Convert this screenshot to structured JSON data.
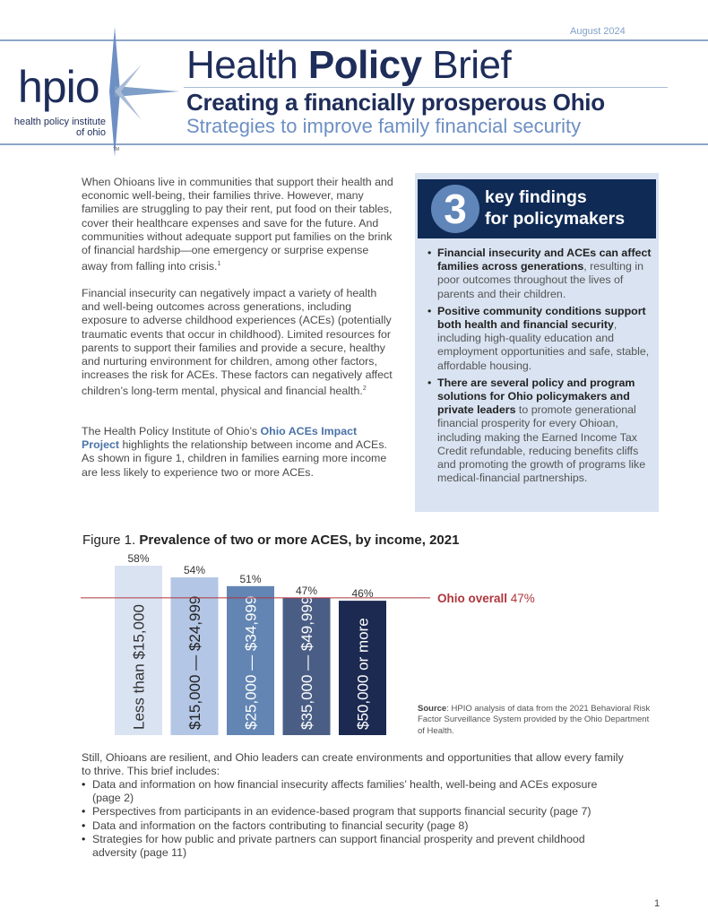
{
  "header": {
    "date": "August 2024",
    "logo": {
      "mark": "hpio",
      "name_line1": "health policy institute",
      "name_line2": "of ohio",
      "tm": "TM"
    },
    "title_pre": "Health ",
    "title_bold": "Policy",
    "title_post": " Brief",
    "subtitle": "Creating a financially prosperous Ohio",
    "tagline": "Strategies to improve family financial security"
  },
  "intro": {
    "p1": "When Ohioans live in communities that support their health and economic well-being, their families thrive. However, many families are struggling to pay their rent, put food on their tables, cover their healthcare expenses and save for the future. And communities without adequate support put families on the brink of financial hardship—one emergency or surprise expense away from falling into crisis.",
    "p1_note": "1",
    "p2": "Financial insecurity can negatively impact a variety of health and well-being outcomes across generations, including exposure to adverse childhood experiences (ACEs) (potentially traumatic events that occur in childhood). Limited resources for parents to support their families and provide a secure, healthy and nurturing environment for children, among other factors, increases the risk for ACEs. These factors can negatively affect children’s long-term mental, physical and financial health.",
    "p2_note": "2",
    "p3_pre": "The Health Policy Institute of Ohio’s ",
    "p3_link": "Ohio ACEs Impact Project",
    "p3_post": " highlights the relationship between income and ACEs. As shown in figure 1, children in families earning more income are less likely to experience two or more ACEs."
  },
  "key_findings": {
    "number": "3",
    "title_line1": "key findings",
    "title_line2": "for policymakers",
    "items": [
      {
        "bold": "Financial insecurity and ACEs can affect families across generations",
        "text": ", resulting in poor outcomes throughout the lives of parents and their children."
      },
      {
        "bold": "Positive community conditions support both health and financial security",
        "text": ", including high-quality education and employment opportunities and safe, stable, affordable housing."
      },
      {
        "bold": "There are several policy and program solutions for Ohio policymakers and private leaders",
        "text": " to promote generational financial prosperity for every Ohioan, including making the Earned Income Tax Credit refundable, reducing benefits cliffs and promoting the growth of programs like medical-financial partnerships."
      }
    ]
  },
  "chart_data": {
    "type": "bar",
    "title_prefix": "Figure 1. ",
    "title": "Prevalence of two or more ACES, by income, 2021",
    "categories": [
      "Less than $15,000",
      "$15,000 — $24,999",
      "$25,000 — $34,999",
      "$35,000 — $49,999",
      "$50,000 or more"
    ],
    "values": [
      58,
      54,
      51,
      47,
      46
    ],
    "data_labels": [
      "58%",
      "54%",
      "51%",
      "47%",
      "46%"
    ],
    "colors": [
      "#dae3f2",
      "#b3c6e5",
      "#6285b3",
      "#4a5e85",
      "#1c2a52"
    ],
    "label_colors": [
      "#333333",
      "#222222",
      "#ffffff",
      "#ffffff",
      "#ffffff"
    ],
    "ylim": [
      0,
      58
    ],
    "reference_line": {
      "label_bold": "Ohio overall",
      "label_value": "47%",
      "value": 47,
      "color": "#b0353c"
    },
    "source_label": "Source",
    "source_text": ": HPIO analysis of data from the 2021 Behavioral Risk Factor Surveillance System provided by the Ohio Department of Health."
  },
  "closing": {
    "text": "Still, Ohioans are resilient, and Ohio leaders can create environments and opportunities that allow every family to thrive. This brief includes:",
    "items": [
      "Data and information on how financial insecurity affects families’ health, well-being and ACEs exposure (page 2)",
      "Perspectives from participants in an evidence-based program that supports financial security (page 7)",
      "Data and information on the factors contributing to financial security (page 8)",
      "Strategies for how public and private partners can support financial prosperity and prevent childhood adversity (page 11)"
    ]
  },
  "page_number": "1"
}
